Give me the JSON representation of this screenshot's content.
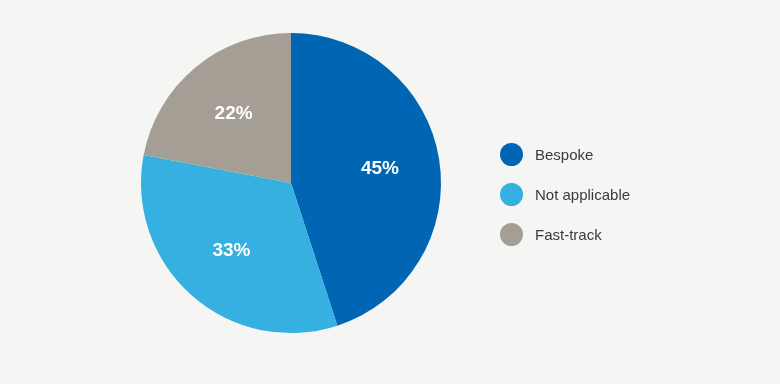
{
  "chart_data": {
    "type": "pie",
    "categories": [
      "Bespoke",
      "Not applicable",
      "Fast-track"
    ],
    "values": [
      45,
      33,
      22
    ],
    "value_labels": [
      "45%",
      "33%",
      "22%"
    ],
    "colors": [
      "#0066b3",
      "#35b0e0",
      "#a59e94"
    ],
    "data_labels": true,
    "legend": "right"
  }
}
